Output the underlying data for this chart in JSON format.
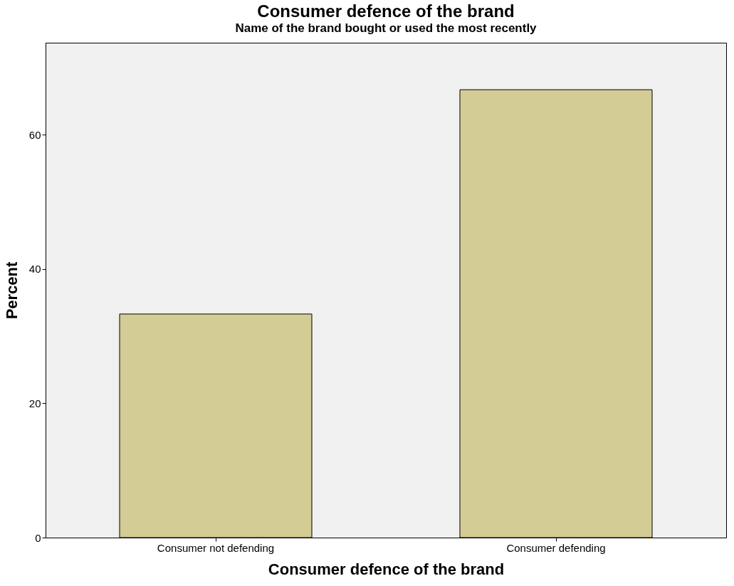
{
  "chart_data": {
    "type": "bar",
    "title": "Consumer defence of the brand",
    "subtitle": "Name of the brand bought or used the most recently",
    "xlabel": "Consumer defence of the brand",
    "ylabel": "Percent",
    "categories": [
      "Consumer not defending",
      "Consumer defending"
    ],
    "values": [
      33.3,
      66.7
    ],
    "color": "#d3cd95",
    "ylim": [
      0,
      73.7
    ],
    "yticks": [
      0,
      20,
      40,
      60
    ],
    "grid": false
  }
}
